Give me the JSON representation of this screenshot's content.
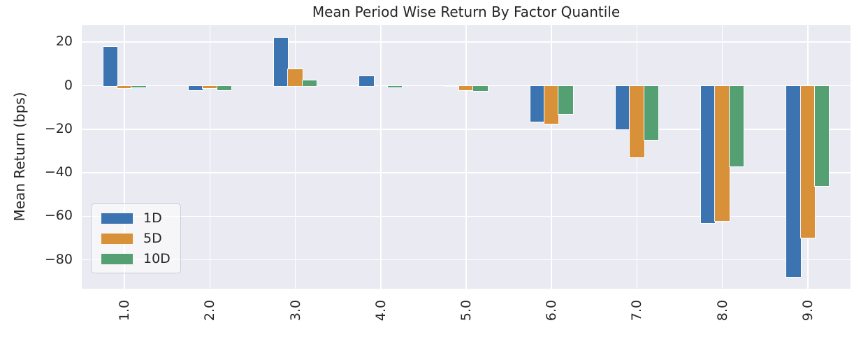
{
  "chart_data": {
    "type": "bar",
    "title": "Mean Period Wise Return By Factor Quantile",
    "xlabel": "",
    "ylabel": "Mean Return (bps)",
    "categories": [
      "1.0",
      "2.0",
      "3.0",
      "4.0",
      "5.0",
      "6.0",
      "7.0",
      "8.0",
      "9.0"
    ],
    "series": [
      {
        "name": "1D",
        "color": "#3B74B0",
        "values": [
          18,
          -2,
          22,
          4.4,
          -0.3,
          -16.5,
          -20,
          -63,
          -88
        ]
      },
      {
        "name": "5D",
        "color": "#D89139",
        "values": [
          -1.2,
          -1.2,
          7.6,
          0,
          -2,
          -17.5,
          -33,
          -62,
          -70
        ]
      },
      {
        "name": "10D",
        "color": "#54A073",
        "values": [
          -0.8,
          -2.2,
          2.5,
          -0.8,
          -2.5,
          -13,
          -25,
          -37,
          -46
        ]
      }
    ],
    "ylim": [
      -93.3,
      27.8
    ],
    "yticks": [
      20,
      0,
      -20,
      -40,
      -60,
      -80
    ],
    "grid": true,
    "legend_position": "lower left",
    "plot_background": "#eaeaf2",
    "grid_color": "#ffffff",
    "text_color": "#262626"
  }
}
